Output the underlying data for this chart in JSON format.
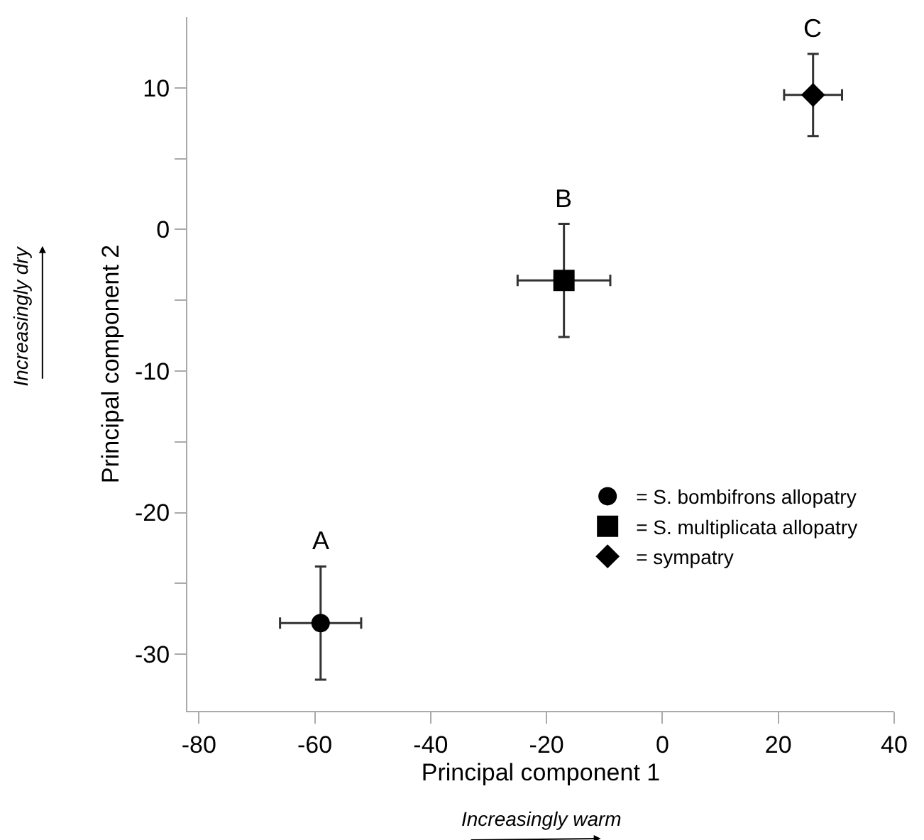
{
  "chart_data": {
    "type": "scatter",
    "xlabel": "Principal component 1",
    "ylabel": "Principal component 2",
    "series": [
      {
        "name": "= S. bombifrons allopatry",
        "color": "#000000",
        "marker": "circle",
        "x": [
          -59
        ],
        "values": [
          -27.8
        ],
        "errors": [
          4
        ],
        "xerrors": [
          7
        ]
      },
      {
        "name": "= S. multiplicata allopatry",
        "color": "#000000",
        "marker": "square",
        "x": [
          -17
        ],
        "values": [
          -3.6
        ],
        "errors": [
          4
        ],
        "xerrors": [
          8
        ]
      },
      {
        "name": "= sympatry",
        "color": "#000000",
        "marker": "diamond",
        "x": [
          26
        ],
        "values": [
          9.5
        ],
        "errors": [
          2.9
        ],
        "xerrors": [
          5
        ]
      }
    ],
    "annotations": [
      {
        "text": "A",
        "x": -59,
        "y": -23.8
      },
      {
        "text": "B",
        "x": -17,
        "y": 0.4
      },
      {
        "text": "C",
        "x": 26,
        "y": 12.4
      },
      "Increasingly warm",
      "Increasingly dry"
    ],
    "xlim": [
      -82,
      40
    ],
    "xticks": [
      -80,
      -60,
      -40,
      -20,
      0,
      20,
      40
    ],
    "ylim": [
      -34,
      15
    ],
    "yticks": [
      -30,
      {
        "value": -25,
        "label": null
      },
      -20,
      {
        "value": -15,
        "label": null
      },
      -10,
      {
        "value": -5,
        "label": null
      },
      0,
      {
        "value": 5,
        "label": null
      },
      10
    ],
    "grid": false,
    "legend": "bottom right"
  }
}
